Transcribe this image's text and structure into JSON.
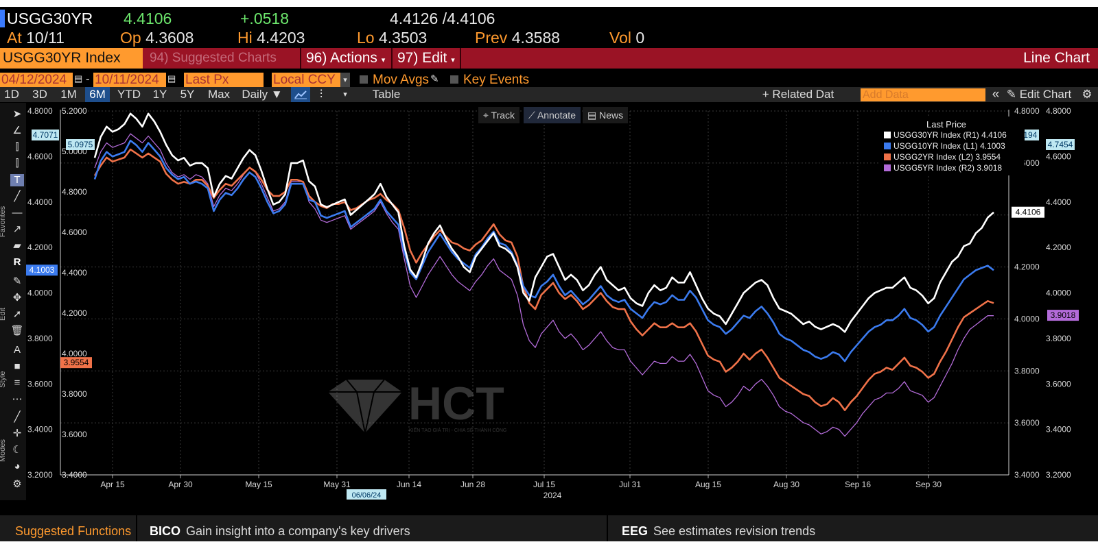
{
  "header": {
    "ticker": "USGG30YR",
    "last": "4.4106",
    "change": "+.0518",
    "bid_ask": "4.4126 /4.4106",
    "at_label": "At",
    "at_value": "10/11",
    "open_label": "Op",
    "open_value": "4.3608",
    "high_label": "Hi",
    "high_value": "4.4203",
    "low_label": "Lo",
    "low_value": "4.3503",
    "prev_label": "Prev",
    "prev_value": "4.3588",
    "vol_label": "Vol",
    "vol_value": "0"
  },
  "command_bar": {
    "security": "USGG30YR Index",
    "suggested": "94) Suggested Charts",
    "actions": "96) Actions",
    "edit": "97) Edit",
    "title": "Line Chart"
  },
  "controls": {
    "start_date": "04/12/2024",
    "end_date": "10/11/2024",
    "field": "Last Px",
    "currency": "Local CCY",
    "mov_avgs": "Mov Avgs",
    "key_events": "Key Events"
  },
  "period_bar": {
    "periods": [
      "1D",
      "3D",
      "1M",
      "6M",
      "YTD",
      "1Y",
      "5Y",
      "Max"
    ],
    "active": "6M",
    "frequency": "Daily ▼",
    "table": "Table",
    "related_data": "+ Related Dat",
    "add_data_placeholder": "Add Data",
    "edit_chart": "Edit Chart"
  },
  "chart_overlay": {
    "track": "Track",
    "annotate": "Annotate",
    "news": "News"
  },
  "toolbar_labels": {
    "favorites": "Favorites",
    "edit": "Edit",
    "style": "Style",
    "modes": "Modes"
  },
  "chart_data": {
    "type": "line",
    "x_labels": [
      "Apr 15",
      "Apr 30",
      "May 15",
      "May 31",
      "Jun 14",
      "Jun 28",
      "Jul 15",
      "Jul 31",
      "Aug 15",
      "Aug 30",
      "Sep 16",
      "Sep 30"
    ],
    "year_label": "2024",
    "cursor_date": "06/06/24",
    "legend_title": "Last Price",
    "series": [
      {
        "name": "USGG30YR Index",
        "axis": "(R1)",
        "last": "4.4106",
        "color": "#ffffff",
        "values": [
          4.62,
          4.7,
          4.74,
          4.72,
          4.73,
          4.75,
          4.79,
          4.77,
          4.74,
          4.79,
          4.76,
          4.72,
          4.67,
          4.63,
          4.61,
          4.62,
          4.59,
          4.6,
          4.6,
          4.58,
          4.47,
          4.52,
          4.55,
          4.54,
          4.58,
          4.62,
          4.65,
          4.63,
          4.57,
          4.5,
          4.44,
          4.45,
          4.48,
          4.6,
          4.6,
          4.61,
          4.53,
          4.51,
          4.44,
          4.43,
          4.44,
          4.45,
          4.46,
          4.4,
          4.42,
          4.44,
          4.46,
          4.48,
          4.52,
          4.47,
          4.44,
          4.41,
          4.28,
          4.19,
          4.16,
          4.22,
          4.29,
          4.33,
          4.36,
          4.31,
          4.27,
          4.24,
          4.2,
          4.18,
          4.24,
          4.27,
          4.3,
          4.33,
          4.28,
          4.27,
          4.25,
          4.2,
          4.1,
          4.07,
          4.16,
          4.2,
          4.24,
          4.25,
          4.2,
          4.15,
          4.17,
          4.15,
          4.11,
          4.13,
          4.17,
          4.2,
          4.15,
          4.13,
          4.11,
          4.12,
          4.08,
          4.06,
          4.05,
          4.1,
          4.13,
          4.11,
          4.12,
          4.16,
          4.14,
          4.14,
          4.18,
          4.13,
          4.08,
          4.04,
          4.02,
          4.01,
          3.98,
          4.02,
          4.06,
          4.1,
          4.12,
          4.14,
          4.15,
          4.13,
          4.08,
          4.04,
          4.03,
          4.02,
          4.0,
          3.98,
          3.99,
          3.97,
          3.96,
          3.97,
          3.98,
          3.97,
          3.95,
          3.99,
          4.02,
          4.05,
          4.08,
          4.1,
          4.11,
          4.12,
          4.12,
          4.14,
          4.16,
          4.12,
          4.11,
          4.09,
          4.06,
          4.08,
          4.14,
          4.18,
          4.22,
          4.24,
          4.28,
          4.29,
          4.33,
          4.35,
          4.39,
          4.41
        ]
      },
      {
        "name": "USGG10YR Index",
        "axis": "(L1)",
        "last": "4.1003",
        "color": "#3b7bef",
        "values": [
          4.5,
          4.58,
          4.62,
          4.6,
          4.61,
          4.62,
          4.67,
          4.65,
          4.62,
          4.66,
          4.63,
          4.6,
          4.55,
          4.52,
          4.5,
          4.51,
          4.48,
          4.49,
          4.48,
          4.46,
          4.36,
          4.41,
          4.44,
          4.43,
          4.46,
          4.5,
          4.53,
          4.51,
          4.46,
          4.4,
          4.35,
          4.36,
          4.39,
          4.48,
          4.48,
          4.48,
          4.41,
          4.4,
          4.34,
          4.33,
          4.34,
          4.35,
          4.36,
          4.29,
          4.31,
          4.33,
          4.35,
          4.37,
          4.41,
          4.36,
          4.33,
          4.3,
          4.18,
          4.09,
          4.06,
          4.12,
          4.18,
          4.22,
          4.26,
          4.22,
          4.18,
          4.15,
          4.13,
          4.11,
          4.17,
          4.2,
          4.24,
          4.27,
          4.22,
          4.21,
          4.18,
          4.12,
          4.03,
          3.99,
          3.98,
          4.03,
          4.05,
          4.08,
          4.03,
          3.99,
          4.01,
          3.98,
          3.95,
          3.97,
          4.0,
          4.03,
          3.99,
          3.97,
          3.96,
          3.97,
          3.93,
          3.91,
          3.89,
          3.93,
          3.96,
          3.95,
          3.96,
          3.99,
          3.97,
          3.97,
          4.01,
          3.98,
          3.93,
          3.88,
          3.86,
          3.85,
          3.82,
          3.84,
          3.87,
          3.9,
          3.89,
          3.92,
          3.94,
          3.91,
          3.87,
          3.82,
          3.8,
          3.79,
          3.77,
          3.75,
          3.74,
          3.72,
          3.71,
          3.72,
          3.74,
          3.73,
          3.7,
          3.74,
          3.77,
          3.8,
          3.83,
          3.85,
          3.86,
          3.88,
          3.88,
          3.9,
          3.93,
          3.89,
          3.88,
          3.86,
          3.83,
          3.85,
          3.9,
          3.94,
          3.98,
          4.02,
          4.06,
          4.08,
          4.1,
          4.11,
          4.12,
          4.1
        ]
      },
      {
        "name": "USGG2YR Index",
        "axis": "(L2)",
        "last": "3.9554",
        "color": "#f07249",
        "values": [
          4.88,
          4.93,
          4.97,
          4.95,
          4.96,
          4.97,
          5.01,
          4.99,
          4.97,
          4.99,
          4.97,
          4.95,
          4.89,
          4.86,
          4.84,
          4.85,
          4.84,
          4.86,
          4.86,
          4.83,
          4.77,
          4.81,
          4.84,
          4.83,
          4.86,
          4.89,
          4.92,
          4.9,
          4.86,
          4.81,
          4.78,
          4.78,
          4.8,
          4.86,
          4.86,
          4.85,
          4.78,
          4.75,
          4.73,
          4.72,
          4.74,
          4.74,
          4.75,
          4.71,
          4.72,
          4.74,
          4.76,
          4.77,
          4.79,
          4.76,
          4.74,
          4.71,
          4.62,
          4.51,
          4.45,
          4.5,
          4.54,
          4.58,
          4.61,
          4.58,
          4.55,
          4.54,
          4.52,
          4.51,
          4.54,
          4.56,
          4.6,
          4.64,
          4.59,
          4.56,
          4.55,
          4.48,
          4.33,
          4.25,
          4.22,
          4.29,
          4.32,
          4.35,
          4.3,
          4.27,
          4.29,
          4.26,
          4.22,
          4.24,
          4.27,
          4.3,
          4.26,
          4.23,
          4.22,
          4.22,
          4.16,
          4.12,
          4.09,
          4.12,
          4.15,
          4.13,
          4.13,
          4.15,
          4.13,
          4.13,
          4.15,
          4.11,
          4.05,
          3.99,
          3.97,
          3.96,
          3.91,
          3.93,
          3.96,
          4.0,
          3.97,
          4.0,
          4.02,
          3.98,
          3.93,
          3.88,
          3.86,
          3.84,
          3.82,
          3.8,
          3.79,
          3.76,
          3.74,
          3.75,
          3.78,
          3.76,
          3.72,
          3.76,
          3.79,
          3.83,
          3.87,
          3.9,
          3.91,
          3.93,
          3.92,
          3.95,
          3.98,
          3.94,
          3.93,
          3.91,
          3.88,
          3.9,
          3.96,
          4.01,
          4.07,
          4.13,
          4.18,
          4.2,
          4.22,
          4.24,
          4.26,
          4.25
        ]
      },
      {
        "name": "USGG5YR Index",
        "axis": "(R2)",
        "last": "3.9018",
        "color": "#b36bd9",
        "values": [
          4.55,
          4.62,
          4.66,
          4.64,
          4.65,
          4.66,
          4.7,
          4.68,
          4.66,
          4.69,
          4.66,
          4.63,
          4.57,
          4.53,
          4.51,
          4.52,
          4.5,
          4.52,
          4.51,
          4.48,
          4.38,
          4.43,
          4.46,
          4.45,
          4.48,
          4.52,
          4.55,
          4.53,
          4.48,
          4.42,
          4.36,
          4.37,
          4.4,
          4.49,
          4.49,
          4.49,
          4.4,
          4.37,
          4.32,
          4.31,
          4.32,
          4.33,
          4.34,
          4.28,
          4.3,
          4.32,
          4.34,
          4.36,
          4.4,
          4.35,
          4.31,
          4.28,
          4.15,
          4.03,
          3.98,
          4.03,
          4.08,
          4.12,
          4.16,
          4.12,
          4.08,
          4.05,
          4.03,
          4.01,
          4.05,
          4.08,
          4.12,
          4.15,
          4.1,
          4.08,
          4.06,
          3.99,
          3.86,
          3.79,
          3.76,
          3.82,
          3.85,
          3.88,
          3.83,
          3.8,
          3.82,
          3.79,
          3.75,
          3.77,
          3.8,
          3.83,
          3.79,
          3.76,
          3.75,
          3.75,
          3.7,
          3.67,
          3.64,
          3.67,
          3.7,
          3.69,
          3.69,
          3.72,
          3.7,
          3.7,
          3.73,
          3.69,
          3.63,
          3.57,
          3.55,
          3.54,
          3.5,
          3.52,
          3.55,
          3.59,
          3.57,
          3.6,
          3.62,
          3.59,
          3.55,
          3.5,
          3.48,
          3.47,
          3.45,
          3.43,
          3.42,
          3.4,
          3.38,
          3.39,
          3.41,
          3.4,
          3.37,
          3.4,
          3.43,
          3.47,
          3.5,
          3.53,
          3.54,
          3.56,
          3.56,
          3.58,
          3.61,
          3.57,
          3.56,
          3.55,
          3.52,
          3.54,
          3.59,
          3.64,
          3.69,
          3.75,
          3.8,
          3.84,
          3.86,
          3.88,
          3.9,
          3.9
        ]
      }
    ],
    "left_axis_1_ticks": [
      "4.8000",
      "4.6000",
      "4.4000",
      "4.2000",
      "4.0000",
      "3.8000",
      "3.6000",
      "3.4000",
      "3.2000"
    ],
    "left_axis_2_ticks": [
      "5.2000",
      "5.0000",
      "4.8000",
      "4.6000",
      "4.4000",
      "4.2000",
      "4.0000",
      "3.8000",
      "3.6000",
      "3.4000"
    ],
    "right_axis_1_ticks": [
      "4.8000",
      "4.6000",
      "4.4000",
      "4.2000",
      "4.0000",
      "3.8000",
      "3.6000",
      "3.4000"
    ],
    "right_axis_2_ticks": [
      "4.8000",
      "4.6000",
      "4.4000",
      "4.2000",
      "4.0000",
      "3.8000",
      "3.6000",
      "3.4000",
      "3.2000"
    ],
    "left1_range": [
      3.2,
      4.8
    ],
    "left2_range": [
      3.4,
      5.2
    ],
    "right1_range": [
      3.4,
      4.8
    ],
    "right2_range": [
      3.2,
      4.8
    ],
    "tags": {
      "left1_high": "4.7071",
      "left2_high": "5.0975",
      "left1_last": "4.1003",
      "left2_last": "3.9554",
      "right1_high": "4.8194",
      "right2_high": "4.7454",
      "right1_last": "4.4106",
      "right2_last": "3.9018"
    },
    "grid": true
  },
  "watermark": {
    "brand": "HCT",
    "tagline": "KIẾN TẠO GIÁ TRỊ - CHIA SẺ THÀNH CÔNG"
  },
  "bottom_bar": {
    "suggested_functions": "Suggested Functions",
    "fn1_code": "BICO",
    "fn1_desc": "Gain insight into a company's key drivers",
    "fn2_code": "EEG",
    "fn2_desc": "See estimates revision trends"
  }
}
